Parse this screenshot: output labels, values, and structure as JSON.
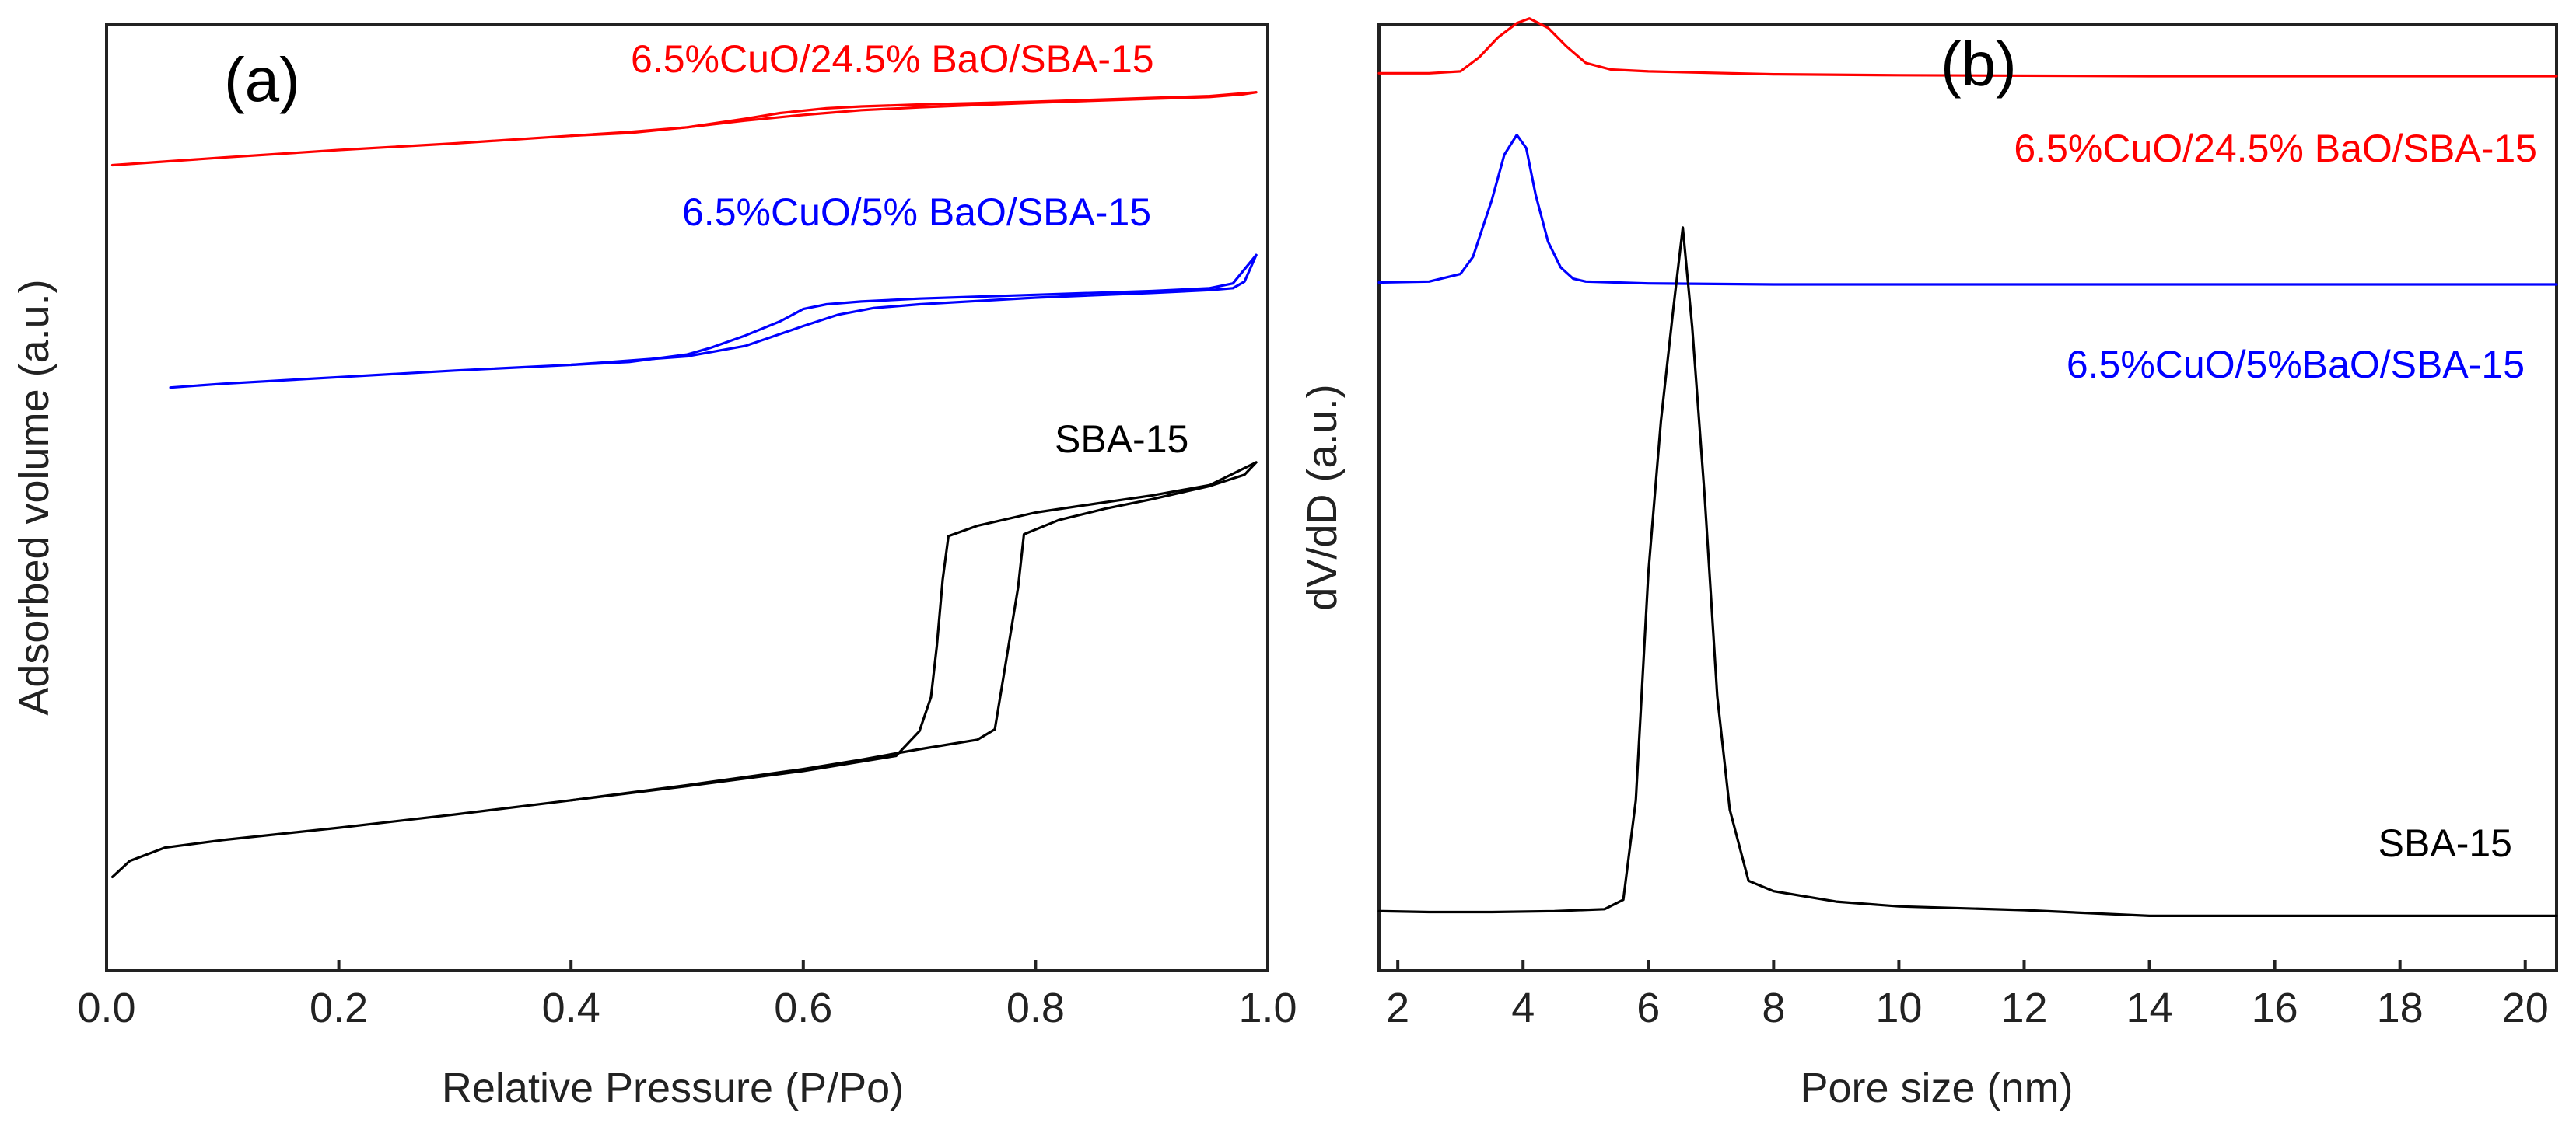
{
  "chart_data": [
    {
      "panel": "(a)",
      "type": "line",
      "xlabel": "Relative Pressure (P/Po)",
      "ylabel": "Adsorbed volume (a.u.)",
      "xlim": [
        0.0,
        1.0
      ],
      "ylim": [
        0,
        100
      ],
      "xticks": [
        0.0,
        0.2,
        0.4,
        0.6,
        0.8,
        1.0
      ],
      "xtick_labels": [
        "0.0",
        "0.2",
        "0.4",
        "0.6",
        "0.8",
        "1.0"
      ],
      "series": [
        {
          "name": "6.5%CuO/24.5% BaO/SBA-15",
          "color": "#ff0000",
          "adsorption": {
            "x": [
              0.005,
              0.1,
              0.2,
              0.3,
              0.4,
              0.45,
              0.5,
              0.55,
              0.6,
              0.65,
              0.7,
              0.8,
              0.9,
              0.95,
              0.98,
              0.99
            ],
            "y": [
              85.1,
              85.9,
              86.7,
              87.4,
              88.2,
              88.6,
              89.1,
              89.8,
              90.4,
              90.9,
              91.2,
              91.7,
              92.1,
              92.3,
              92.6,
              92.8
            ]
          },
          "desorption": {
            "x": [
              0.99,
              0.95,
              0.9,
              0.8,
              0.7,
              0.65,
              0.62,
              0.58,
              0.55,
              0.5,
              0.45,
              0.4
            ],
            "y": [
              92.8,
              92.4,
              92.2,
              91.8,
              91.5,
              91.3,
              91.1,
              90.6,
              90.0,
              89.1,
              88.5,
              88.2
            ]
          }
        },
        {
          "name": "6.5%CuO/5% BaO/SBA-15",
          "color": "#0000ff",
          "adsorption": {
            "x": [
              0.055,
              0.1,
              0.2,
              0.3,
              0.4,
              0.5,
              0.55,
              0.6,
              0.63,
              0.66,
              0.7,
              0.8,
              0.9,
              0.95,
              0.97,
              0.98,
              0.99
            ],
            "y": [
              61.6,
              62.0,
              62.7,
              63.4,
              64.0,
              64.9,
              66.0,
              68.1,
              69.3,
              70.0,
              70.4,
              71.1,
              71.6,
              71.9,
              72.1,
              72.8,
              75.6
            ]
          },
          "desorption": {
            "x": [
              0.99,
              0.97,
              0.95,
              0.9,
              0.8,
              0.7,
              0.65,
              0.62,
              0.6,
              0.58,
              0.55,
              0.52,
              0.5,
              0.45,
              0.4
            ],
            "y": [
              75.6,
              72.6,
              72.1,
              71.8,
              71.4,
              71.0,
              70.7,
              70.4,
              69.9,
              68.6,
              67.1,
              65.8,
              65.1,
              64.3,
              64.0
            ]
          }
        },
        {
          "name": "SBA-15",
          "color": "#000000",
          "adsorption": {
            "x": [
              0.005,
              0.02,
              0.05,
              0.1,
              0.2,
              0.3,
              0.4,
              0.5,
              0.6,
              0.65,
              0.7,
              0.75,
              0.765,
              0.775,
              0.785,
              0.79,
              0.82,
              0.86,
              0.9,
              0.95,
              0.98,
              0.99
            ],
            "y": [
              9.9,
              11.6,
              13.0,
              13.8,
              15.1,
              16.5,
              18.0,
              19.6,
              21.3,
              22.3,
              23.4,
              24.4,
              25.5,
              33.0,
              40.5,
              46.1,
              47.6,
              48.8,
              49.8,
              51.2,
              52.4,
              53.7
            ]
          },
          "desorption": {
            "x": [
              0.99,
              0.95,
              0.9,
              0.85,
              0.8,
              0.75,
              0.725,
              0.72,
              0.715,
              0.71,
              0.7,
              0.68,
              0.6,
              0.5,
              0.4
            ],
            "y": [
              53.7,
              51.3,
              50.2,
              49.3,
              48.4,
              47.0,
              45.9,
              41.3,
              34.3,
              28.9,
              25.3,
              22.7,
              21.1,
              19.5,
              18.0
            ]
          }
        }
      ]
    },
    {
      "panel": "(b)",
      "type": "line",
      "xlabel": "Pore size (nm)",
      "ylabel": "dV/dD (a.u.)",
      "xlim": [
        1.7,
        20.5
      ],
      "ylim": [
        0,
        100
      ],
      "xticks": [
        2,
        4,
        6,
        8,
        10,
        12,
        14,
        16,
        18,
        20
      ],
      "xtick_labels": [
        "2",
        "4",
        "6",
        "8",
        "10",
        "12",
        "14",
        "16",
        "18",
        "20"
      ],
      "series": [
        {
          "name": "6.5%CuO/24.5% BaO/SBA-15",
          "label_text": "6.5%CuO/24.5% BaO/SBA-15",
          "color": "#ff0000",
          "x": [
            1.7,
            2.5,
            3.0,
            3.3,
            3.6,
            3.9,
            4.1,
            4.4,
            4.7,
            5.0,
            5.4,
            6.0,
            8.0,
            10.0,
            14.0,
            20.5
          ],
          "y": [
            94.8,
            94.8,
            95.0,
            96.5,
            98.6,
            100.1,
            100.6,
            99.6,
            97.6,
            95.9,
            95.2,
            95.0,
            94.7,
            94.6,
            94.5,
            94.5
          ]
        },
        {
          "name": "6.5%CuO/5%BaO/SBA-15",
          "label_text": "6.5%CuO/5%BaO/SBA-15",
          "color": "#0000ff",
          "x": [
            1.7,
            2.5,
            3.0,
            3.2,
            3.5,
            3.7,
            3.9,
            4.05,
            4.2,
            4.4,
            4.6,
            4.8,
            5.0,
            5.5,
            6.0,
            8.0,
            20.5
          ],
          "y": [
            72.7,
            72.8,
            73.6,
            75.4,
            81.4,
            86.2,
            88.3,
            86.9,
            82.0,
            77.0,
            74.3,
            73.1,
            72.8,
            72.7,
            72.6,
            72.5,
            72.5
          ]
        },
        {
          "name": "SBA-15",
          "label_text": "SBA-15",
          "color": "#000000",
          "x": [
            1.7,
            2.5,
            3.5,
            4.5,
            5.3,
            5.6,
            5.8,
            6.0,
            6.2,
            6.4,
            6.55,
            6.7,
            6.9,
            7.1,
            7.3,
            7.6,
            8.0,
            9.0,
            10.0,
            12.0,
            14.0,
            20.5
          ],
          "y": [
            6.3,
            6.2,
            6.2,
            6.3,
            6.5,
            7.5,
            18.0,
            42.0,
            58.0,
            70.0,
            78.5,
            68.0,
            50.0,
            29.0,
            17.0,
            9.5,
            8.4,
            7.3,
            6.8,
            6.4,
            5.8,
            5.8
          ]
        }
      ]
    }
  ]
}
